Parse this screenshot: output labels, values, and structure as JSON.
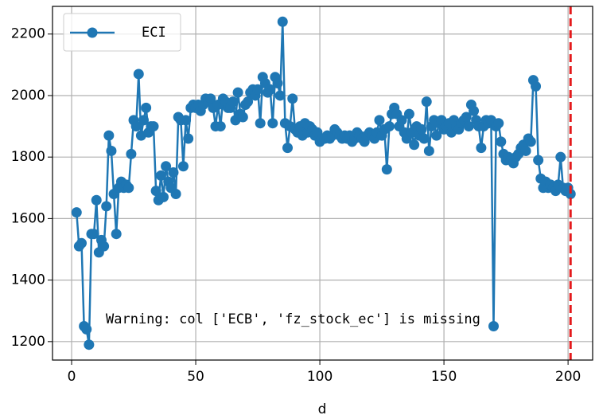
{
  "chart_data": {
    "type": "line",
    "x": [
      2,
      3,
      4,
      5,
      6,
      7,
      8,
      9,
      10,
      11,
      12,
      13,
      14,
      15,
      16,
      17,
      18,
      19,
      20,
      21,
      22,
      23,
      24,
      25,
      26,
      27,
      28,
      29,
      30,
      31,
      32,
      33,
      34,
      35,
      36,
      37,
      38,
      39,
      40,
      41,
      42,
      43,
      44,
      45,
      46,
      47,
      48,
      49,
      50,
      51,
      52,
      53,
      54,
      55,
      56,
      57,
      58,
      59,
      60,
      61,
      62,
      63,
      64,
      65,
      66,
      67,
      68,
      69,
      70,
      71,
      72,
      73,
      74,
      75,
      76,
      77,
      78,
      79,
      80,
      81,
      82,
      83,
      84,
      85,
      86,
      87,
      88,
      89,
      90,
      91,
      92,
      93,
      94,
      95,
      96,
      97,
      98,
      99,
      100,
      101,
      102,
      103,
      104,
      105,
      106,
      107,
      108,
      109,
      110,
      111,
      112,
      113,
      114,
      115,
      116,
      117,
      118,
      119,
      120,
      121,
      122,
      123,
      124,
      125,
      126,
      127,
      128,
      129,
      130,
      131,
      132,
      133,
      134,
      135,
      136,
      137,
      138,
      139,
      140,
      141,
      142,
      143,
      144,
      145,
      146,
      147,
      148,
      149,
      150,
      151,
      152,
      153,
      154,
      155,
      156,
      157,
      158,
      159,
      160,
      161,
      162,
      163,
      164,
      165,
      166,
      167,
      168,
      169,
      170,
      171,
      172,
      173,
      174,
      175,
      176,
      177,
      178,
      179,
      180,
      181,
      182,
      183,
      184,
      185,
      186,
      187,
      188,
      189,
      190,
      191,
      192,
      193,
      194,
      195,
      196,
      197,
      198,
      199,
      200,
      201
    ],
    "series": [
      {
        "name": "ECI",
        "color": "#1f77b4",
        "values": [
          1620,
          1510,
          1520,
          1250,
          1240,
          1190,
          1550,
          1550,
          1660,
          1490,
          1530,
          1510,
          1640,
          1870,
          1820,
          1680,
          1550,
          1700,
          1720,
          1700,
          1710,
          1700,
          1810,
          1920,
          1900,
          2070,
          1870,
          1920,
          1960,
          1880,
          1900,
          1900,
          1690,
          1660,
          1740,
          1670,
          1770,
          1720,
          1700,
          1750,
          1680,
          1930,
          1920,
          1770,
          1920,
          1860,
          1960,
          1970,
          1960,
          1970,
          1950,
          1970,
          1990,
          1980,
          1990,
          1960,
          1900,
          1970,
          1900,
          1990,
          1980,
          1960,
          1960,
          1980,
          1920,
          2010,
          1940,
          1930,
          1970,
          1980,
          2010,
          2020,
          2000,
          2020,
          1910,
          2060,
          2040,
          2010,
          2020,
          1910,
          2060,
          2040,
          2000,
          2240,
          1910,
          1830,
          1900,
          1990,
          1890,
          1880,
          1900,
          1870,
          1910,
          1880,
          1900,
          1890,
          1870,
          1880,
          1850,
          1860,
          1860,
          1870,
          1860,
          1870,
          1890,
          1880,
          1870,
          1860,
          1870,
          1860,
          1870,
          1850,
          1860,
          1880,
          1870,
          1860,
          1850,
          1870,
          1880,
          1870,
          1860,
          1880,
          1920,
          1870,
          1890,
          1760,
          1900,
          1940,
          1960,
          1940,
          1900,
          1920,
          1880,
          1860,
          1940,
          1880,
          1840,
          1900,
          1870,
          1890,
          1860,
          1980,
          1820,
          1900,
          1920,
          1870,
          1910,
          1920,
          1890,
          1900,
          1910,
          1880,
          1920,
          1900,
          1890,
          1910,
          1920,
          1930,
          1900,
          1970,
          1950,
          1920,
          1900,
          1830,
          1900,
          1920,
          1910,
          1920,
          1250,
          1900,
          1910,
          1850,
          1810,
          1790,
          1800,
          1790,
          1780,
          1800,
          1810,
          1830,
          1840,
          1820,
          1860,
          1850,
          2050,
          2030,
          1790,
          1730,
          1700,
          1720,
          1700,
          1710,
          1700,
          1690,
          1710,
          1800,
          1700,
          1690,
          1700,
          1680
        ]
      }
    ],
    "xlabel": "d",
    "xlim": [
      -7.7,
      209.9
    ],
    "xticks": [
      0,
      50,
      100,
      150,
      200
    ],
    "ylim": [
      1140,
      2290
    ],
    "yticks": [
      1200,
      1400,
      1600,
      1800,
      2000,
      2200
    ],
    "grid": true,
    "legend": "upper left",
    "vline": 201,
    "vline_color": "#e41a1c",
    "annotation": "Warning: col ['ECB', 'fz_stock_ec'] is missing"
  }
}
